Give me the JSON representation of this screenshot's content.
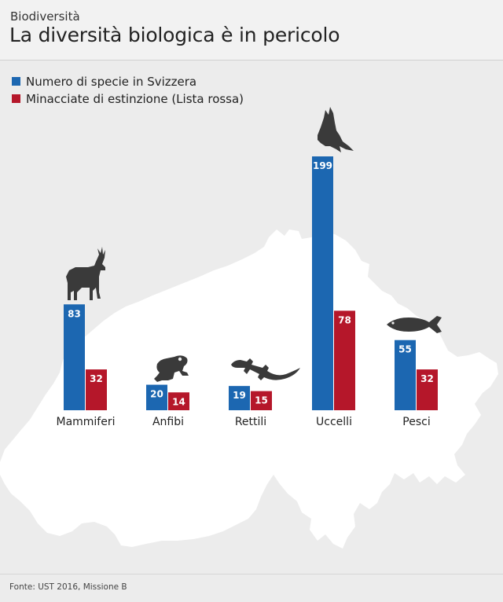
{
  "header": {
    "kicker": "Biodiversità",
    "title": "La diversità biologica è in pericolo"
  },
  "legend": [
    {
      "label": "Numero di specie in Svizzera",
      "color": "#1c67b1"
    },
    {
      "label": "Minacciate di estinzione (Lista rossa)",
      "color": "#b5172a"
    }
  ],
  "chart_data": {
    "type": "bar",
    "categories": [
      "Mammiferi",
      "Anfibi",
      "Rettili",
      "Uccelli",
      "Pesci"
    ],
    "series": [
      {
        "name": "Numero di specie in Svizzera",
        "values": [
          83,
          20,
          19,
          199,
          55
        ],
        "color": "#1c67b1"
      },
      {
        "name": "Minacciate di estinzione (Lista rossa)",
        "values": [
          32,
          14,
          15,
          78,
          32
        ],
        "color": "#b5172a"
      }
    ],
    "icons": [
      "deer-icon",
      "frog-icon",
      "lizard-icon",
      "bird-icon",
      "fish-icon"
    ],
    "ylim": [
      0,
      199
    ],
    "grid": false,
    "legend_position": "top-left",
    "data_labels": true
  },
  "source": "Fonte: UST 2016, Missione B"
}
